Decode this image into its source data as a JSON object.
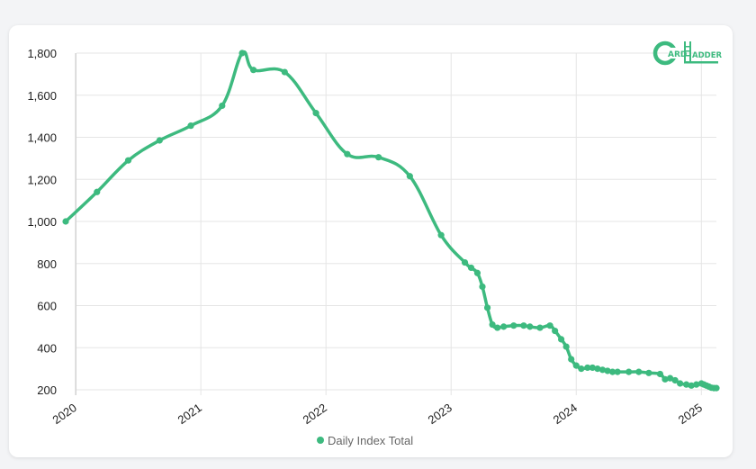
{
  "brand": {
    "logo_text_a": "ARD",
    "logo_text_b": "ADDER",
    "color": "#3dba7f"
  },
  "chart_data": {
    "type": "line",
    "title": "",
    "xlabel": "",
    "ylabel": "",
    "ylim": [
      200,
      1800
    ],
    "xlim": [
      2019.92,
      2025.12
    ],
    "y_ticks": [
      200,
      400,
      600,
      800,
      1000,
      1200,
      1400,
      1600,
      1800
    ],
    "y_tick_labels": [
      "200",
      "400",
      "600",
      "800",
      "1,000",
      "1,200",
      "1,400",
      "1,600",
      "1,800"
    ],
    "x_ticks": [
      2020,
      2021,
      2022,
      2023,
      2024,
      2025
    ],
    "x_tick_labels": [
      "2020",
      "2021",
      "2022",
      "2023",
      "2024",
      "2025"
    ],
    "legend_position": "bottom",
    "grid": true,
    "series": [
      {
        "name": "Daily Index Total",
        "color": "#3dba7f",
        "x": [
          2019.92,
          2020.17,
          2020.42,
          2020.67,
          2020.92,
          2021.17,
          2021.33,
          2021.42,
          2021.67,
          2021.92,
          2022.17,
          2022.42,
          2022.67,
          2022.92,
          2023.11,
          2023.16,
          2023.21,
          2023.25,
          2023.29,
          2023.33,
          2023.37,
          2023.42,
          2023.5,
          2023.58,
          2023.63,
          2023.71,
          2023.79,
          2023.83,
          2023.88,
          2023.92,
          2023.96,
          2024.0,
          2024.04,
          2024.09,
          2024.13,
          2024.17,
          2024.21,
          2024.25,
          2024.29,
          2024.33,
          2024.42,
          2024.5,
          2024.58,
          2024.67,
          2024.71,
          2024.75,
          2024.79,
          2024.83,
          2024.88,
          2024.92,
          2024.96,
          2025.0,
          2025.02,
          2025.04,
          2025.06,
          2025.08,
          2025.1,
          2025.12
        ],
        "y": [
          1000,
          1140,
          1290,
          1385,
          1455,
          1550,
          1800,
          1720,
          1710,
          1515,
          1320,
          1305,
          1215,
          935,
          805,
          780,
          755,
          690,
          590,
          510,
          495,
          500,
          505,
          505,
          500,
          495,
          505,
          480,
          440,
          405,
          345,
          315,
          300,
          305,
          305,
          300,
          295,
          290,
          285,
          285,
          285,
          285,
          280,
          275,
          250,
          255,
          245,
          230,
          225,
          220,
          225,
          230,
          225,
          220,
          215,
          210,
          208,
          208
        ]
      }
    ]
  }
}
